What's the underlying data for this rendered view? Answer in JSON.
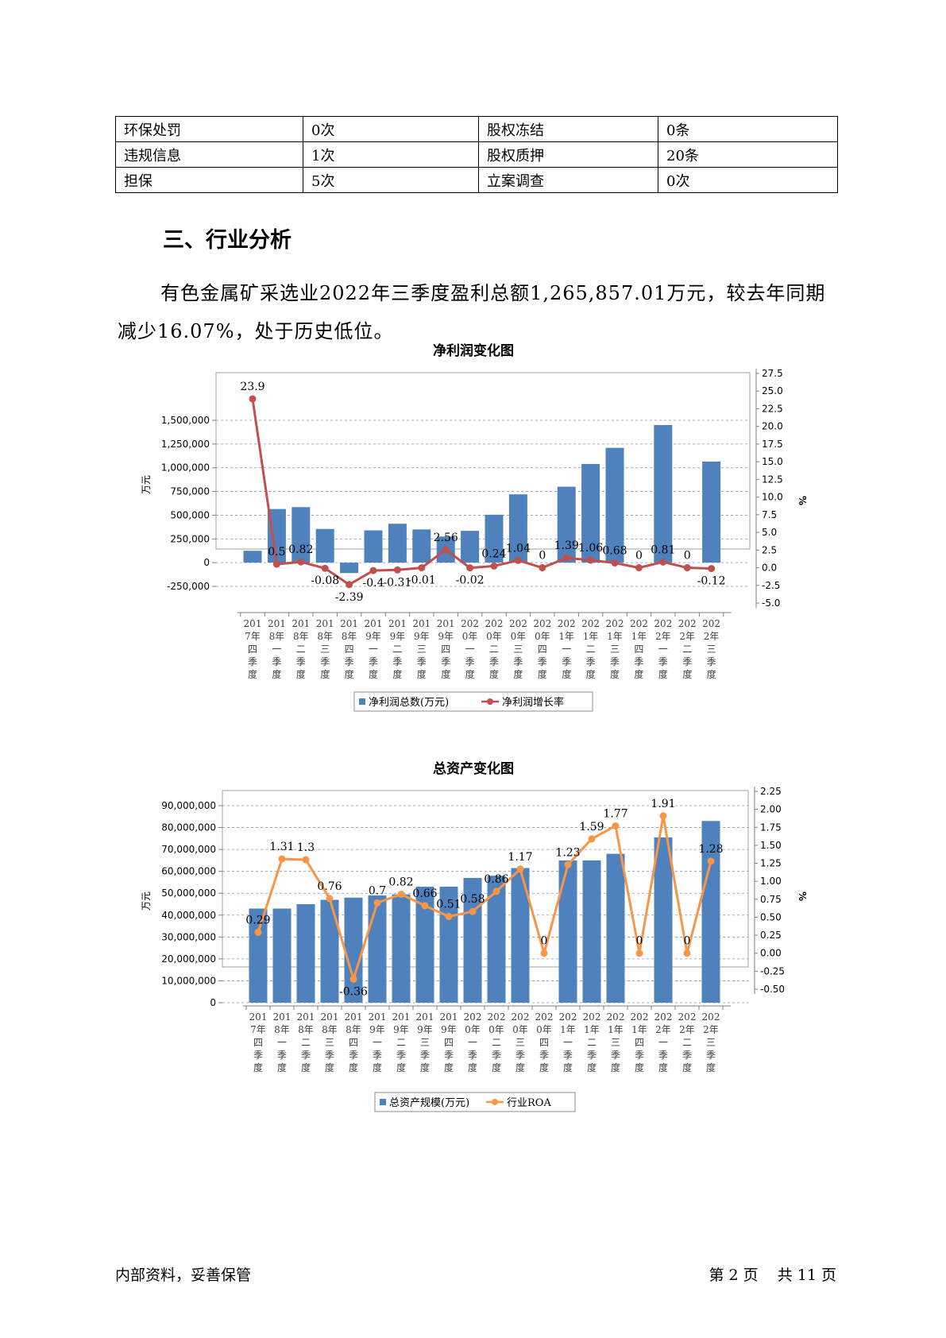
{
  "risk_table": {
    "rows": [
      [
        "环保处罚",
        "0次",
        "股权冻结",
        "0条"
      ],
      [
        "违规信息",
        "1次",
        "股权质押",
        "20条"
      ],
      [
        "担保",
        "5次",
        "立案调查",
        "0次"
      ]
    ]
  },
  "section": {
    "heading": "三、行业分析",
    "paragraph": "有色金属矿采选业2022年三季度盈利总额1,265,857.01万元，较去年同期减少16.07%，处于历史低位。"
  },
  "chart_data": [
    {
      "type": "bar",
      "title": "净利润变化图",
      "ylabel": "万元",
      "y2label": "%",
      "ylim": [
        -250000,
        1500000
      ],
      "y_ticks": [
        "-250,000",
        "0",
        "250,000",
        "500,000",
        "750,000",
        "1,000,000",
        "1,250,000",
        "1,500,000"
      ],
      "y2lim": [
        -5,
        27.5
      ],
      "y2_ticks": [
        "-5.0",
        "-2.5",
        "0.0",
        "2.5",
        "5.0",
        "7.5",
        "10.0",
        "12.5",
        "15.0",
        "17.5",
        "20.0",
        "22.5",
        "25.0",
        "27.5"
      ],
      "categories": [
        "2017年四季度",
        "2018年一季度",
        "2018年二季度",
        "2018年三季度",
        "2018年四季度",
        "2019年一季度",
        "2019年二季度",
        "2019年三季度",
        "2019年四季度",
        "2020年一季度",
        "2020年二季度",
        "2020年三季度",
        "2020年四季度",
        "2021年一季度",
        "2021年二季度",
        "2021年三季度",
        "2021年四季度",
        "2022年一季度",
        "2022年二季度",
        "2022年三季度"
      ],
      "category_lines": [
        [
          "201",
          "7年",
          "四",
          "季",
          "度"
        ],
        [
          "201",
          "8年",
          "一",
          "季",
          "度"
        ],
        [
          "201",
          "8年",
          "二",
          "季",
          "度"
        ],
        [
          "201",
          "8年",
          "三",
          "季",
          "度"
        ],
        [
          "201",
          "8年",
          "四",
          "季",
          "度"
        ],
        [
          "201",
          "9年",
          "一",
          "季",
          "度"
        ],
        [
          "201",
          "9年",
          "二",
          "季",
          "度"
        ],
        [
          "201",
          "9年",
          "三",
          "季",
          "度"
        ],
        [
          "201",
          "9年",
          "四",
          "季",
          "度"
        ],
        [
          "202",
          "0年",
          "一",
          "季",
          "度"
        ],
        [
          "202",
          "0年",
          "二",
          "季",
          "度"
        ],
        [
          "202",
          "0年",
          "三",
          "季",
          "度"
        ],
        [
          "202",
          "0年",
          "四",
          "季",
          "度"
        ],
        [
          "202",
          "1年",
          "一",
          "季",
          "度"
        ],
        [
          "202",
          "1年",
          "二",
          "季",
          "度"
        ],
        [
          "202",
          "1年",
          "三",
          "季",
          "度"
        ],
        [
          "202",
          "1年",
          "四",
          "季",
          "度"
        ],
        [
          "202",
          "2年",
          "一",
          "季",
          "度"
        ],
        [
          "202",
          "2年",
          "二",
          "季",
          "度"
        ],
        [
          "202",
          "2年",
          "三",
          "季",
          "度"
        ]
      ],
      "series": [
        {
          "name": "净利润总数(万元)",
          "type": "bar",
          "color": "#4f81bd",
          "values": [
            125000,
            565000,
            585000,
            355000,
            -110000,
            340000,
            410000,
            350000,
            275000,
            335000,
            505000,
            720000,
            null,
            800000,
            1040000,
            1210000,
            null,
            1450000,
            null,
            1065000
          ]
        },
        {
          "name": "净利润增长率",
          "type": "line",
          "axis": "right",
          "color": "#c0504d",
          "values": [
            23.9,
            0.5,
            0.82,
            -0.08,
            -2.39,
            -0.4,
            -0.31,
            -0.01,
            2.56,
            -0.02,
            0.24,
            1.04,
            0,
            1.39,
            1.06,
            0.68,
            0,
            0.81,
            0,
            -0.12
          ],
          "labels": [
            "23.9",
            "0.5",
            "0.82",
            "-0.08",
            "-2.39",
            "-0.4",
            "-0.31",
            "-0.01",
            "2.56",
            "-0.02",
            "0.24",
            "1.04",
            "0",
            "1.39",
            "1.06",
            "0.68",
            "0",
            "0.81",
            "0",
            "-0.12"
          ]
        }
      ],
      "legend": [
        "净利润总数(万元)",
        "净利润增长率"
      ]
    },
    {
      "type": "bar",
      "title": "总资产变化图",
      "ylabel": "万元",
      "y2label": "%",
      "ylim": [
        0,
        90000000
      ],
      "y_ticks": [
        "0",
        "10,000,000",
        "20,000,000",
        "30,000,000",
        "40,000,000",
        "50,000,000",
        "60,000,000",
        "70,000,000",
        "80,000,000",
        "90,000,000"
      ],
      "y2lim": [
        -0.5,
        2.25
      ],
      "y2_ticks": [
        "-0.50",
        "-0.25",
        "0.00",
        "0.25",
        "0.50",
        "0.75",
        "1.00",
        "1.25",
        "1.50",
        "1.75",
        "2.00",
        "2.25"
      ],
      "categories": [
        "2017年四季度",
        "2018年一季度",
        "2018年二季度",
        "2018年三季度",
        "2018年四季度",
        "2019年一季度",
        "2019年二季度",
        "2019年三季度",
        "2019年四季度",
        "2020年一季度",
        "2020年二季度",
        "2020年三季度",
        "2020年四季度",
        "2021年一季度",
        "2021年二季度",
        "2021年三季度",
        "2021年四季度",
        "2022年一季度",
        "2022年二季度",
        "2022年三季度"
      ],
      "category_lines": [
        [
          "201",
          "7年",
          "四",
          "季",
          "度"
        ],
        [
          "201",
          "8年",
          "一",
          "季",
          "度"
        ],
        [
          "201",
          "8年",
          "二",
          "季",
          "度"
        ],
        [
          "201",
          "8年",
          "三",
          "季",
          "度"
        ],
        [
          "201",
          "8年",
          "四",
          "季",
          "度"
        ],
        [
          "201",
          "9年",
          "一",
          "季",
          "度"
        ],
        [
          "201",
          "9年",
          "二",
          "季",
          "度"
        ],
        [
          "201",
          "9年",
          "三",
          "季",
          "度"
        ],
        [
          "201",
          "9年",
          "四",
          "季",
          "度"
        ],
        [
          "202",
          "0年",
          "一",
          "季",
          "度"
        ],
        [
          "202",
          "0年",
          "二",
          "季",
          "度"
        ],
        [
          "202",
          "0年",
          "三",
          "季",
          "度"
        ],
        [
          "202",
          "0年",
          "四",
          "季",
          "度"
        ],
        [
          "202",
          "1年",
          "一",
          "季",
          "度"
        ],
        [
          "202",
          "1年",
          "二",
          "季",
          "度"
        ],
        [
          "202",
          "1年",
          "三",
          "季",
          "度"
        ],
        [
          "202",
          "1年",
          "四",
          "季",
          "度"
        ],
        [
          "202",
          "2年",
          "一",
          "季",
          "度"
        ],
        [
          "202",
          "2年",
          "二",
          "季",
          "度"
        ],
        [
          "202",
          "2年",
          "三",
          "季",
          "度"
        ]
      ],
      "series": [
        {
          "name": "总资产规模(万元)",
          "type": "bar",
          "color": "#4f81bd",
          "values": [
            43000000,
            43000000,
            45000000,
            47000000,
            48000000,
            49000000,
            49500000,
            53000000,
            53000000,
            57000000,
            58000000,
            61500000,
            null,
            65000000,
            65000000,
            68000000,
            null,
            75500000,
            null,
            83000000
          ]
        },
        {
          "name": "行业ROA",
          "type": "line",
          "axis": "right",
          "color": "#f79646",
          "values": [
            0.29,
            1.31,
            1.3,
            0.76,
            -0.36,
            0.7,
            0.82,
            0.66,
            0.51,
            0.58,
            0.86,
            1.17,
            0,
            1.23,
            1.59,
            1.77,
            0,
            1.91,
            0,
            1.28
          ],
          "labels": [
            "0.29",
            "1.31",
            "1.3",
            "0.76",
            "-0.36",
            "0.7",
            "0.82",
            "0.66",
            "0.51",
            "0.58",
            "0.86",
            "1.17",
            "0",
            "1.23",
            "1.59",
            "1.77",
            "0",
            "1.91",
            "0",
            "1.28"
          ]
        }
      ],
      "legend": [
        "总资产规模(万元)",
        "行业ROA"
      ]
    }
  ],
  "footer": {
    "left": "内部资料，妥善保管",
    "page_prefix": "第",
    "page_num": "2",
    "page_suffix": "页",
    "total_prefix": "共",
    "total_num": "11",
    "total_suffix": "页"
  }
}
